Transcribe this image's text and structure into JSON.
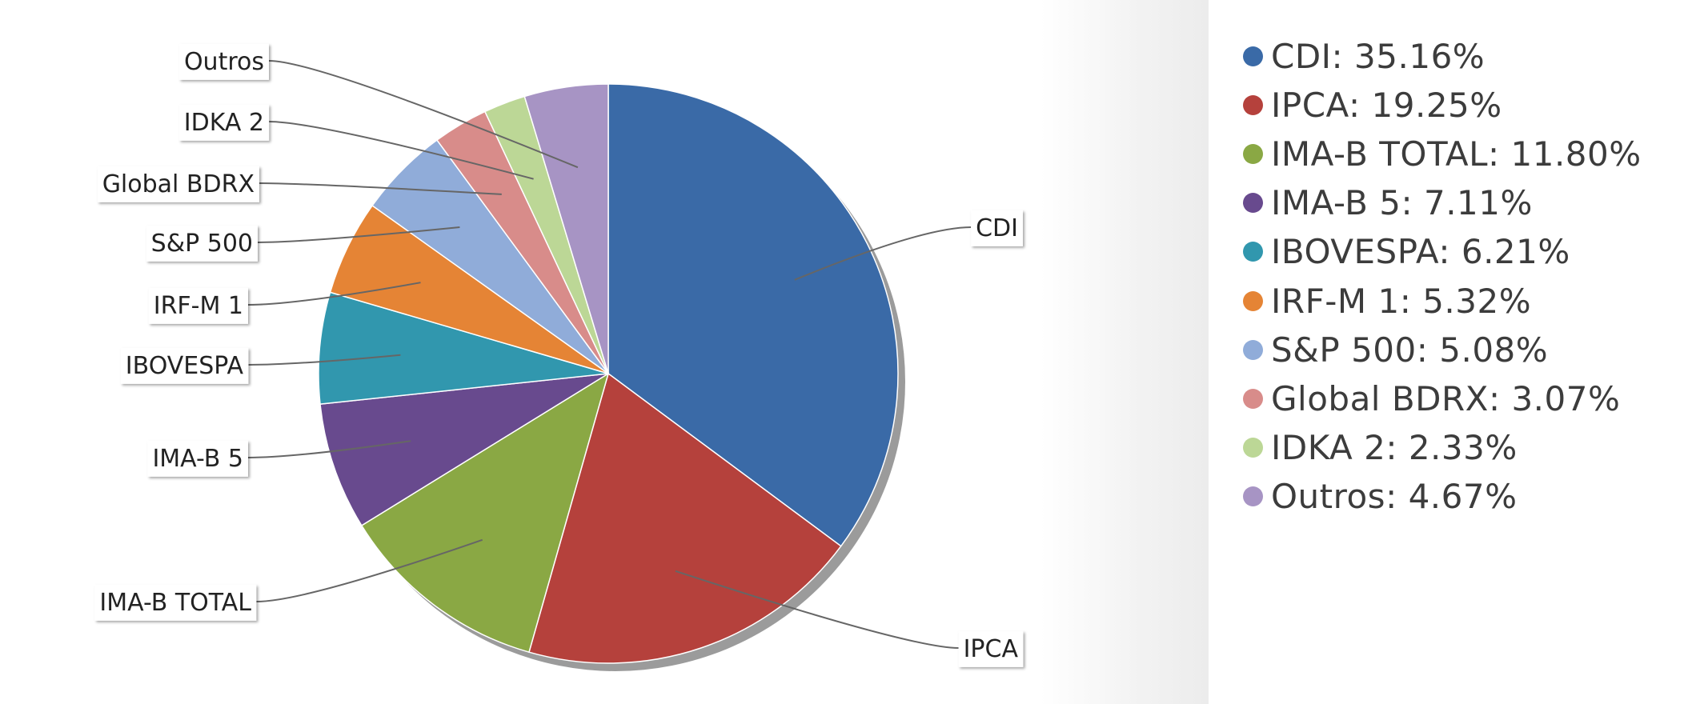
{
  "chart_data": {
    "type": "pie",
    "slices": [
      {
        "label": "CDI",
        "value": 35.16,
        "legend": "CDI: 35.16%",
        "color": "#3a6aa7"
      },
      {
        "label": "IPCA",
        "value": 19.25,
        "legend": "IPCA: 19.25%",
        "color": "#b5413c"
      },
      {
        "label": "IMA-B TOTAL",
        "value": 11.8,
        "legend": "IMA-B TOTAL: 11.80%",
        "color": "#8aa844"
      },
      {
        "label": "IMA-B 5",
        "value": 7.11,
        "legend": "IMA-B 5: 7.11%",
        "color": "#684a8e"
      },
      {
        "label": "IBOVESPA",
        "value": 6.21,
        "legend": "IBOVESPA: 6.21%",
        "color": "#3197ae"
      },
      {
        "label": "IRF-M 1",
        "value": 5.32,
        "legend": "IRF-M 1: 5.32%",
        "color": "#e58435"
      },
      {
        "label": "S&P 500",
        "value": 5.08,
        "legend": "S&P 500: 5.08%",
        "color": "#90acd9"
      },
      {
        "label": "Global BDRX",
        "value": 3.07,
        "legend": "Global BDRX: 3.07%",
        "color": "#d88c8a"
      },
      {
        "label": "IDKA 2",
        "value": 2.33,
        "legend": "IDKA 2: 2.33%",
        "color": "#bcd796"
      },
      {
        "label": "Outros",
        "value": 4.67,
        "legend": "Outros: 4.67%",
        "color": "#a794c4"
      }
    ],
    "legend_position": "right",
    "start_angle": "12 o'clock",
    "direction": "clockwise"
  }
}
